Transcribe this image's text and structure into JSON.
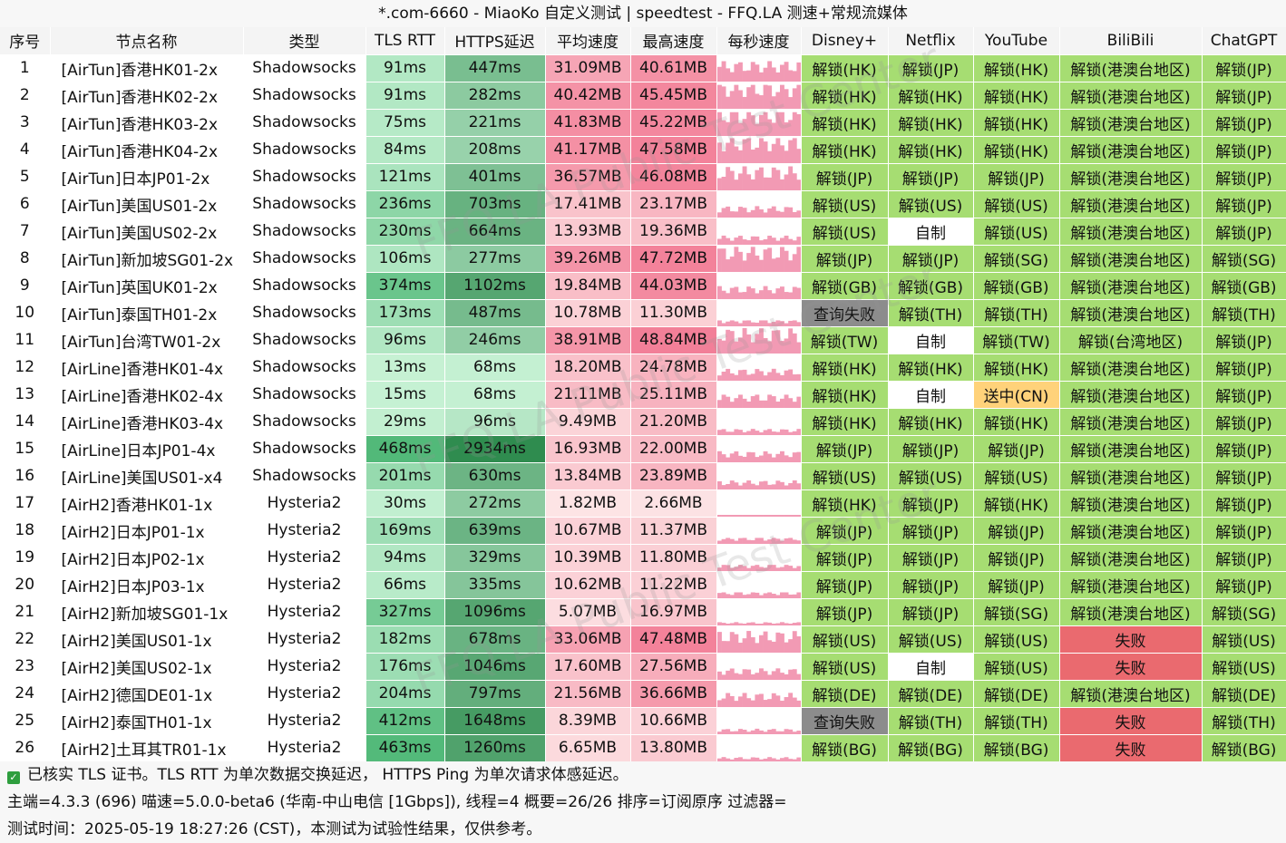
{
  "title": "*.com-6660 - MiaoKo 自定义测试 | speedtest - FFQ.LA 测速+常规流媒体",
  "columns": [
    "序号",
    "节点名称",
    "类型",
    "TLS RTT",
    "HTTPS延迟",
    "平均速度",
    "最高速度",
    "每秒速度",
    "Disney+",
    "Netflix",
    "YouTube",
    "BiliBili",
    "ChatGPT"
  ],
  "rows": [
    {
      "id": "1",
      "name": "[AirTun]香港HK01-2x",
      "type": "Shadowsocks",
      "tls": "91ms",
      "https": "447ms",
      "avg": "31.09MB",
      "max": "40.61MB",
      "disney": "解锁(HK)",
      "netflix": "解锁(JP)",
      "youtube": "解锁(HK)",
      "bilibili": "解锁(港澳台地区)",
      "chatgpt": "解锁(JP)"
    },
    {
      "id": "2",
      "name": "[AirTun]香港HK02-2x",
      "type": "Shadowsocks",
      "tls": "91ms",
      "https": "282ms",
      "avg": "40.42MB",
      "max": "45.45MB",
      "disney": "解锁(HK)",
      "netflix": "解锁(HK)",
      "youtube": "解锁(HK)",
      "bilibili": "解锁(港澳台地区)",
      "chatgpt": "解锁(JP)"
    },
    {
      "id": "3",
      "name": "[AirTun]香港HK03-2x",
      "type": "Shadowsocks",
      "tls": "75ms",
      "https": "221ms",
      "avg": "41.83MB",
      "max": "45.22MB",
      "disney": "解锁(HK)",
      "netflix": "解锁(HK)",
      "youtube": "解锁(HK)",
      "bilibili": "解锁(港澳台地区)",
      "chatgpt": "解锁(JP)"
    },
    {
      "id": "4",
      "name": "[AirTun]香港HK04-2x",
      "type": "Shadowsocks",
      "tls": "84ms",
      "https": "208ms",
      "avg": "41.17MB",
      "max": "47.58MB",
      "disney": "解锁(HK)",
      "netflix": "解锁(HK)",
      "youtube": "解锁(HK)",
      "bilibili": "解锁(港澳台地区)",
      "chatgpt": "解锁(JP)"
    },
    {
      "id": "5",
      "name": "[AirTun]日本JP01-2x",
      "type": "Shadowsocks",
      "tls": "121ms",
      "https": "401ms",
      "avg": "36.57MB",
      "max": "46.08MB",
      "disney": "解锁(JP)",
      "netflix": "解锁(JP)",
      "youtube": "解锁(JP)",
      "bilibili": "解锁(港澳台地区)",
      "chatgpt": "解锁(JP)"
    },
    {
      "id": "6",
      "name": "[AirTun]美国US01-2x",
      "type": "Shadowsocks",
      "tls": "236ms",
      "https": "703ms",
      "avg": "17.41MB",
      "max": "23.17MB",
      "disney": "解锁(US)",
      "netflix": "解锁(US)",
      "youtube": "解锁(US)",
      "bilibili": "解锁(港澳台地区)",
      "chatgpt": "解锁(JP)"
    },
    {
      "id": "7",
      "name": "[AirTun]美国US02-2x",
      "type": "Shadowsocks",
      "tls": "230ms",
      "https": "664ms",
      "avg": "13.93MB",
      "max": "19.36MB",
      "disney": "解锁(US)",
      "netflix": "自制",
      "youtube": "解锁(US)",
      "bilibili": "解锁(港澳台地区)",
      "chatgpt": "解锁(JP)"
    },
    {
      "id": "8",
      "name": "[AirTun]新加坡SG01-2x",
      "type": "Shadowsocks",
      "tls": "106ms",
      "https": "277ms",
      "avg": "39.26MB",
      "max": "47.72MB",
      "disney": "解锁(JP)",
      "netflix": "解锁(JP)",
      "youtube": "解锁(SG)",
      "bilibili": "解锁(港澳台地区)",
      "chatgpt": "解锁(SG)"
    },
    {
      "id": "9",
      "name": "[AirTun]英国UK01-2x",
      "type": "Shadowsocks",
      "tls": "374ms",
      "https": "1102ms",
      "avg": "19.84MB",
      "max": "44.03MB",
      "disney": "解锁(GB)",
      "netflix": "解锁(GB)",
      "youtube": "解锁(GB)",
      "bilibili": "解锁(港澳台地区)",
      "chatgpt": "解锁(GB)"
    },
    {
      "id": "10",
      "name": "[AirTun]泰国TH01-2x",
      "type": "Shadowsocks",
      "tls": "173ms",
      "https": "487ms",
      "avg": "10.78MB",
      "max": "11.30MB",
      "disney": "查询失败",
      "netflix": "解锁(TH)",
      "youtube": "解锁(TH)",
      "bilibili": "解锁(港澳台地区)",
      "chatgpt": "解锁(TH)"
    },
    {
      "id": "11",
      "name": "[AirTun]台湾TW01-2x",
      "type": "Shadowsocks",
      "tls": "96ms",
      "https": "246ms",
      "avg": "38.91MB",
      "max": "48.84MB",
      "disney": "解锁(TW)",
      "netflix": "自制",
      "youtube": "解锁(TW)",
      "bilibili": "解锁(台湾地区)",
      "chatgpt": "解锁(JP)"
    },
    {
      "id": "12",
      "name": "[AirLine]香港HK01-4x",
      "type": "Shadowsocks",
      "tls": "13ms",
      "https": "68ms",
      "avg": "18.20MB",
      "max": "24.78MB",
      "disney": "解锁(HK)",
      "netflix": "解锁(HK)",
      "youtube": "解锁(HK)",
      "bilibili": "解锁(港澳台地区)",
      "chatgpt": "解锁(JP)"
    },
    {
      "id": "13",
      "name": "[AirLine]香港HK02-4x",
      "type": "Shadowsocks",
      "tls": "15ms",
      "https": "68ms",
      "avg": "21.11MB",
      "max": "25.11MB",
      "disney": "解锁(HK)",
      "netflix": "自制",
      "youtube": "送中(CN)",
      "bilibili": "解锁(港澳台地区)",
      "chatgpt": "解锁(JP)"
    },
    {
      "id": "14",
      "name": "[AirLine]香港HK03-4x",
      "type": "Shadowsocks",
      "tls": "29ms",
      "https": "96ms",
      "avg": "9.49MB",
      "max": "21.20MB",
      "disney": "解锁(HK)",
      "netflix": "解锁(HK)",
      "youtube": "解锁(HK)",
      "bilibili": "解锁(港澳台地区)",
      "chatgpt": "解锁(JP)"
    },
    {
      "id": "15",
      "name": "[AirLine]日本JP01-4x",
      "type": "Shadowsocks",
      "tls": "468ms",
      "https": "2934ms",
      "avg": "16.93MB",
      "max": "22.00MB",
      "disney": "解锁(JP)",
      "netflix": "解锁(JP)",
      "youtube": "解锁(JP)",
      "bilibili": "解锁(港澳台地区)",
      "chatgpt": "解锁(JP)"
    },
    {
      "id": "16",
      "name": "[AirLine]美国US01-x4",
      "type": "Shadowsocks",
      "tls": "201ms",
      "https": "630ms",
      "avg": "13.84MB",
      "max": "23.89MB",
      "disney": "解锁(US)",
      "netflix": "解锁(US)",
      "youtube": "解锁(US)",
      "bilibili": "解锁(港澳台地区)",
      "chatgpt": "解锁(JP)"
    },
    {
      "id": "17",
      "name": "[AirH2]香港HK01-1x",
      "type": "Hysteria2",
      "tls": "30ms",
      "https": "272ms",
      "avg": "1.82MB",
      "max": "2.66MB",
      "disney": "解锁(HK)",
      "netflix": "解锁(JP)",
      "youtube": "解锁(HK)",
      "bilibili": "解锁(港澳台地区)",
      "chatgpt": "解锁(JP)"
    },
    {
      "id": "18",
      "name": "[AirH2]日本JP01-1x",
      "type": "Hysteria2",
      "tls": "169ms",
      "https": "639ms",
      "avg": "10.67MB",
      "max": "11.37MB",
      "disney": "解锁(JP)",
      "netflix": "解锁(JP)",
      "youtube": "解锁(JP)",
      "bilibili": "解锁(港澳台地区)",
      "chatgpt": "解锁(JP)"
    },
    {
      "id": "19",
      "name": "[AirH2]日本JP02-1x",
      "type": "Hysteria2",
      "tls": "94ms",
      "https": "329ms",
      "avg": "10.39MB",
      "max": "11.80MB",
      "disney": "解锁(JP)",
      "netflix": "解锁(JP)",
      "youtube": "解锁(JP)",
      "bilibili": "解锁(港澳台地区)",
      "chatgpt": "解锁(JP)"
    },
    {
      "id": "20",
      "name": "[AirH2]日本JP03-1x",
      "type": "Hysteria2",
      "tls": "66ms",
      "https": "335ms",
      "avg": "10.62MB",
      "max": "11.22MB",
      "disney": "解锁(JP)",
      "netflix": "解锁(JP)",
      "youtube": "解锁(JP)",
      "bilibili": "解锁(港澳台地区)",
      "chatgpt": "解锁(JP)"
    },
    {
      "id": "21",
      "name": "[AirH2]新加坡SG01-1x",
      "type": "Hysteria2",
      "tls": "327ms",
      "https": "1096ms",
      "avg": "5.07MB",
      "max": "16.97MB",
      "disney": "解锁(JP)",
      "netflix": "解锁(JP)",
      "youtube": "解锁(SG)",
      "bilibili": "解锁(港澳台地区)",
      "chatgpt": "解锁(SG)"
    },
    {
      "id": "22",
      "name": "[AirH2]美国US01-1x",
      "type": "Hysteria2",
      "tls": "182ms",
      "https": "678ms",
      "avg": "33.06MB",
      "max": "47.48MB",
      "disney": "解锁(US)",
      "netflix": "解锁(US)",
      "youtube": "解锁(US)",
      "bilibili": "失败",
      "chatgpt": "解锁(US)"
    },
    {
      "id": "23",
      "name": "[AirH2]美国US02-1x",
      "type": "Hysteria2",
      "tls": "176ms",
      "https": "1046ms",
      "avg": "17.60MB",
      "max": "27.56MB",
      "disney": "解锁(US)",
      "netflix": "自制",
      "youtube": "解锁(US)",
      "bilibili": "失败",
      "chatgpt": "解锁(US)"
    },
    {
      "id": "24",
      "name": "[AirH2]德国DE01-1x",
      "type": "Hysteria2",
      "tls": "204ms",
      "https": "797ms",
      "avg": "21.56MB",
      "max": "36.66MB",
      "disney": "解锁(DE)",
      "netflix": "解锁(DE)",
      "youtube": "解锁(DE)",
      "bilibili": "解锁(港澳台地区)",
      "chatgpt": "解锁(DE)"
    },
    {
      "id": "25",
      "name": "[AirH2]泰国TH01-1x",
      "type": "Hysteria2",
      "tls": "412ms",
      "https": "1648ms",
      "avg": "8.39MB",
      "max": "10.66MB",
      "disney": "查询失败",
      "netflix": "解锁(TH)",
      "youtube": "解锁(TH)",
      "bilibili": "失败",
      "chatgpt": "解锁(TH)"
    },
    {
      "id": "26",
      "name": "[AirH2]土耳其TR01-1x",
      "type": "Hysteria2",
      "tls": "463ms",
      "https": "1260ms",
      "avg": "6.65MB",
      "max": "13.80MB",
      "disney": "解锁(BG)",
      "netflix": "解锁(BG)",
      "youtube": "解锁(BG)",
      "bilibili": "失败",
      "chatgpt": "解锁(BG)"
    }
  ],
  "footer": {
    "line1": "已核实 TLS 证书。TLS RTT 为单次数据交换延迟， HTTPS Ping 为单次请求体感延迟。",
    "line2": "主端=4.3.3 (696) 喵速=5.0.0-beta6 (华南-中山电信 [1Gbps]), 线程=4 概要=26/26 排序=订阅原序 过滤器=",
    "line3": "测试时间：2025-05-19 18:27:26 (CST)，本测试为试验性结果，仅供参考。"
  },
  "watermark": "FFQ.LA Public Test Center",
  "colors": {
    "unlock": "#a6dd72",
    "self_made": "#ffffff",
    "query_fail": "#8c8c8c",
    "fail": "#ea6a6f",
    "send_cn": "#ffd27a",
    "speed_bar": "#f29ab4"
  }
}
